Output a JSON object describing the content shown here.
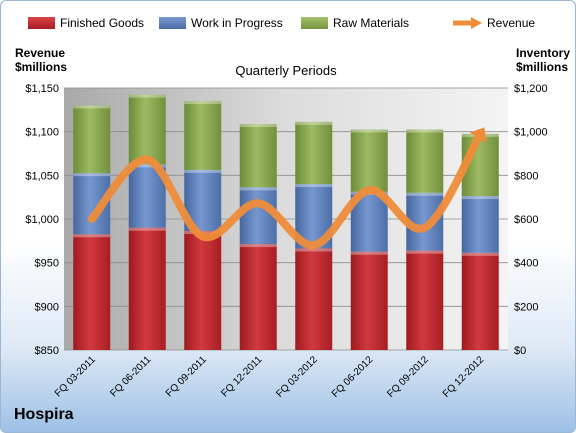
{
  "chart_data": {
    "type": "bar",
    "title": "Quarterly Periods",
    "company": "Hospira",
    "left_axis_label": [
      "Revenue",
      "$millions"
    ],
    "right_axis_label": [
      "Inventory",
      "$millions"
    ],
    "categories": [
      "FQ 03-2011",
      "FQ 06-2011",
      "FQ 09-2011",
      "FQ 12-2011",
      "FQ 03-2012",
      "FQ 06-2012",
      "FQ 09-2012",
      "FQ 12-2012"
    ],
    "left_axis": {
      "min": 850,
      "max": 1150,
      "step": 50,
      "ticks": [
        "$850",
        "$900",
        "$950",
        "$1,000",
        "$1,050",
        "$1,100",
        "$1,150"
      ]
    },
    "right_axis": {
      "min": 0,
      "max": 1200,
      "step": 200,
      "ticks": [
        "$0",
        "$200",
        "$400",
        "$600",
        "$800",
        "$1,000",
        "$1,200"
      ]
    },
    "series": [
      {
        "name": "Finished Goods",
        "axis": "right",
        "color": "#c0252a",
        "values": [
          530,
          560,
          545,
          485,
          465,
          450,
          455,
          445
        ]
      },
      {
        "name": "Work in Progress",
        "axis": "right",
        "color": "#5f82bd",
        "values": [
          280,
          290,
          280,
          260,
          295,
          275,
          265,
          260
        ]
      },
      {
        "name": "Raw Materials",
        "axis": "right",
        "color": "#8aaa4e",
        "values": [
          310,
          320,
          315,
          290,
          285,
          285,
          290,
          285
        ]
      },
      {
        "name": "Revenue",
        "axis": "left",
        "type": "line",
        "color": "#ef8c3a",
        "values": [
          1000,
          1068,
          980,
          1018,
          970,
          1033,
          990,
          1097
        ]
      }
    ],
    "grid": true,
    "legend_position": "top"
  }
}
